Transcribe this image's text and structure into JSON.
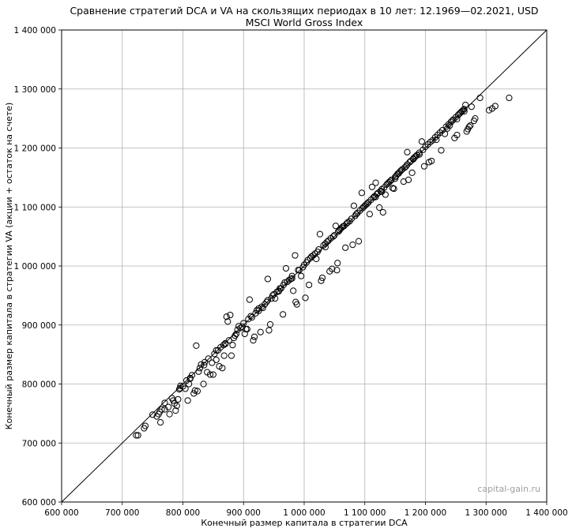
{
  "chart_data": {
    "type": "scatter",
    "title": "Сравнение стратегий DCA и VA на скользящих периодах в 10 лет: 12.1969—02.2021, USD",
    "subtitle": "MSCI World Gross Index",
    "xlabel": "Конечный размер капитала в стратегии DCA",
    "ylabel": "Конечный размер капитала в стратегии VA (акции + остаток на счете)",
    "xlim": [
      600000,
      1400000
    ],
    "ylim": [
      600000,
      1400000
    ],
    "xticks": [
      "600 000",
      "700 000",
      "800 000",
      "900 000",
      "1 000 000",
      "1 100 000",
      "1 200 000",
      "1 300 000",
      "1 400 000"
    ],
    "yticks": [
      "600 000",
      "700 000",
      "800 000",
      "900 000",
      "1 000 000",
      "1 100 000",
      "1 200 000",
      "1 300 000",
      "1 400 000"
    ],
    "grid": true,
    "reference_line": "y = x",
    "marker": "open-circle",
    "watermark": "capital-gain.ru",
    "points": [
      [
        723000,
        713000
      ],
      [
        726000,
        713000
      ],
      [
        736000,
        725000
      ],
      [
        738000,
        729000
      ],
      [
        757000,
        745000
      ],
      [
        760000,
        749000
      ],
      [
        762000,
        753000
      ],
      [
        765000,
        757000
      ],
      [
        763000,
        735000
      ],
      [
        770000,
        757000
      ],
      [
        776000,
        761000
      ],
      [
        778000,
        749000
      ],
      [
        782000,
        776000
      ],
      [
        784000,
        772000
      ],
      [
        786000,
        767000
      ],
      [
        788000,
        755000
      ],
      [
        790000,
        763000
      ],
      [
        792000,
        774000
      ],
      [
        794000,
        791000
      ],
      [
        796000,
        797000
      ],
      [
        800000,
        796000
      ],
      [
        804000,
        792000
      ],
      [
        806000,
        806000
      ],
      [
        808000,
        772000
      ],
      [
        810000,
        800000
      ],
      [
        812000,
        809000
      ],
      [
        815000,
        815000
      ],
      [
        818000,
        784000
      ],
      [
        820000,
        789000
      ],
      [
        822000,
        865000
      ],
      [
        824000,
        788000
      ],
      [
        826000,
        821000
      ],
      [
        828000,
        827000
      ],
      [
        830000,
        833000
      ],
      [
        834000,
        800000
      ],
      [
        836000,
        837000
      ],
      [
        840000,
        820000
      ],
      [
        842000,
        843000
      ],
      [
        845000,
        816000
      ],
      [
        848000,
        836000
      ],
      [
        850000,
        816000
      ],
      [
        852000,
        851000
      ],
      [
        855000,
        841000
      ],
      [
        858000,
        857000
      ],
      [
        860000,
        830000
      ],
      [
        862000,
        862000
      ],
      [
        865000,
        827000
      ],
      [
        867000,
        866000
      ],
      [
        868000,
        848000
      ],
      [
        870000,
        869000
      ],
      [
        872000,
        914000
      ],
      [
        874000,
        906000
      ],
      [
        876000,
        874000
      ],
      [
        878000,
        917000
      ],
      [
        880000,
        848000
      ],
      [
        882000,
        866000
      ],
      [
        884000,
        878000
      ],
      [
        886000,
        882000
      ],
      [
        888000,
        885000
      ],
      [
        890000,
        892000
      ],
      [
        892000,
        898000
      ],
      [
        895000,
        895000
      ],
      [
        898000,
        897000
      ],
      [
        900000,
        903000
      ],
      [
        902000,
        885000
      ],
      [
        904000,
        893000
      ],
      [
        906000,
        893000
      ],
      [
        908000,
        910000
      ],
      [
        910000,
        943000
      ],
      [
        912000,
        915000
      ],
      [
        914000,
        913000
      ],
      [
        916000,
        874000
      ],
      [
        918000,
        880000
      ],
      [
        920000,
        920000
      ],
      [
        922000,
        925000
      ],
      [
        925000,
        928000
      ],
      [
        928000,
        888000
      ],
      [
        930000,
        931000
      ],
      [
        932000,
        929000
      ],
      [
        935000,
        935000
      ],
      [
        938000,
        939000
      ],
      [
        940000,
        978000
      ],
      [
        942000,
        891000
      ],
      [
        944000,
        901000
      ],
      [
        946000,
        945000
      ],
      [
        948000,
        950000
      ],
      [
        950000,
        952000
      ],
      [
        952000,
        945000
      ],
      [
        955000,
        956000
      ],
      [
        958000,
        958000
      ],
      [
        960000,
        962000
      ],
      [
        962000,
        962000
      ],
      [
        965000,
        918000
      ],
      [
        966000,
        968000
      ],
      [
        968000,
        972000
      ],
      [
        970000,
        996000
      ],
      [
        972000,
        973000
      ],
      [
        975000,
        976000
      ],
      [
        978000,
        978000
      ],
      [
        980000,
        983000
      ],
      [
        982000,
        958000
      ],
      [
        985000,
        1018000
      ],
      [
        986000,
        939000
      ],
      [
        988000,
        935000
      ],
      [
        990000,
        993000
      ],
      [
        992000,
        993000
      ],
      [
        995000,
        983000
      ],
      [
        998000,
        998000
      ],
      [
        1000000,
        1002000
      ],
      [
        1002000,
        946000
      ],
      [
        1004000,
        1006000
      ],
      [
        1006000,
        1010000
      ],
      [
        1008000,
        968000
      ],
      [
        1010000,
        1013000
      ],
      [
        1012000,
        1016000
      ],
      [
        1015000,
        1018000
      ],
      [
        1018000,
        1021000
      ],
      [
        1020000,
        1012000
      ],
      [
        1022000,
        1024000
      ],
      [
        1024000,
        1028000
      ],
      [
        1026000,
        1054000
      ],
      [
        1028000,
        975000
      ],
      [
        1030000,
        980000
      ],
      [
        1032000,
        1035000
      ],
      [
        1035000,
        1038000
      ],
      [
        1038000,
        1041000
      ],
      [
        1040000,
        1043000
      ],
      [
        1042000,
        991000
      ],
      [
        1044000,
        1047000
      ],
      [
        1046000,
        995000
      ],
      [
        1048000,
        1050000
      ],
      [
        1050000,
        1052000
      ],
      [
        1052000,
        1068000
      ],
      [
        1054000,
        993000
      ],
      [
        1055000,
        1005000
      ],
      [
        1056000,
        1058000
      ],
      [
        1058000,
        1060000
      ],
      [
        1060000,
        1063000
      ],
      [
        1062000,
        1065000
      ],
      [
        1064000,
        1067000
      ],
      [
        1066000,
        1068000
      ],
      [
        1068000,
        1031000
      ],
      [
        1070000,
        1072000
      ],
      [
        1072000,
        1074000
      ],
      [
        1075000,
        1076000
      ],
      [
        1078000,
        1080000
      ],
      [
        1080000,
        1036000
      ],
      [
        1082000,
        1102000
      ],
      [
        1084000,
        1085000
      ],
      [
        1086000,
        1088000
      ],
      [
        1088000,
        1090000
      ],
      [
        1090000,
        1042000
      ],
      [
        1092000,
        1094000
      ],
      [
        1095000,
        1124000
      ],
      [
        1096000,
        1098000
      ],
      [
        1098000,
        1100000
      ],
      [
        1100000,
        1102000
      ],
      [
        1102000,
        1104000
      ],
      [
        1104000,
        1106000
      ],
      [
        1106000,
        1108000
      ],
      [
        1108000,
        1088000
      ],
      [
        1110000,
        1112000
      ],
      [
        1112000,
        1134000
      ],
      [
        1114000,
        1116000
      ],
      [
        1116000,
        1118000
      ],
      [
        1118000,
        1141000
      ],
      [
        1120000,
        1122000
      ],
      [
        1122000,
        1124000
      ],
      [
        1124000,
        1099000
      ],
      [
        1126000,
        1127000
      ],
      [
        1128000,
        1130000
      ],
      [
        1130000,
        1091000
      ],
      [
        1132000,
        1133000
      ],
      [
        1134000,
        1121000
      ],
      [
        1136000,
        1138000
      ],
      [
        1138000,
        1140000
      ],
      [
        1140000,
        1142000
      ],
      [
        1142000,
        1144000
      ],
      [
        1144000,
        1146000
      ],
      [
        1146000,
        1132000
      ],
      [
        1148000,
        1131000
      ],
      [
        1150000,
        1151000
      ],
      [
        1152000,
        1153000
      ],
      [
        1154000,
        1156000
      ],
      [
        1156000,
        1157000
      ],
      [
        1158000,
        1160000
      ],
      [
        1160000,
        1162000
      ],
      [
        1162000,
        1164000
      ],
      [
        1164000,
        1143000
      ],
      [
        1166000,
        1167000
      ],
      [
        1168000,
        1169000
      ],
      [
        1170000,
        1193000
      ],
      [
        1172000,
        1146000
      ],
      [
        1174000,
        1176000
      ],
      [
        1176000,
        1178000
      ],
      [
        1178000,
        1158000
      ],
      [
        1180000,
        1182000
      ],
      [
        1182000,
        1184000
      ],
      [
        1184000,
        1186000
      ],
      [
        1186000,
        1188000
      ],
      [
        1190000,
        1192000
      ],
      [
        1194000,
        1211000
      ],
      [
        1196000,
        1197000
      ],
      [
        1198000,
        1169000
      ],
      [
        1200000,
        1202000
      ],
      [
        1204000,
        1206000
      ],
      [
        1206000,
        1176000
      ],
      [
        1208000,
        1210000
      ],
      [
        1210000,
        1178000
      ],
      [
        1212000,
        1213000
      ],
      [
        1216000,
        1218000
      ],
      [
        1220000,
        1222000
      ],
      [
        1224000,
        1226000
      ],
      [
        1226000,
        1196000
      ],
      [
        1228000,
        1230000
      ],
      [
        1232000,
        1224000
      ],
      [
        1234000,
        1236000
      ],
      [
        1238000,
        1240000
      ],
      [
        1240000,
        1238000
      ],
      [
        1242000,
        1244000
      ],
      [
        1244000,
        1246000
      ],
      [
        1246000,
        1248000
      ],
      [
        1248000,
        1217000
      ],
      [
        1250000,
        1252000
      ],
      [
        1252000,
        1222000
      ],
      [
        1254000,
        1256000
      ],
      [
        1256000,
        1258000
      ],
      [
        1258000,
        1260000
      ],
      [
        1260000,
        1262000
      ],
      [
        1262000,
        1264000
      ],
      [
        1264000,
        1266000
      ],
      [
        1266000,
        1273000
      ],
      [
        1268000,
        1228000
      ],
      [
        1270000,
        1232000
      ],
      [
        1272000,
        1236000
      ],
      [
        1274000,
        1238000
      ],
      [
        1276000,
        1270000
      ],
      [
        1280000,
        1246000
      ],
      [
        1282000,
        1250000
      ],
      [
        1290000,
        1285000
      ],
      [
        1305000,
        1264000
      ],
      [
        1310000,
        1267000
      ],
      [
        1315000,
        1271000
      ],
      [
        1338000,
        1285000
      ],
      [
        1035000,
        1032000
      ],
      [
        1058000,
        1061000
      ],
      [
        1118000,
        1117000
      ],
      [
        1128000,
        1126000
      ],
      [
        1150000,
        1148000
      ],
      [
        1170000,
        1172000
      ],
      [
        1180000,
        1181000
      ],
      [
        1190000,
        1189000
      ],
      [
        1218000,
        1214000
      ],
      [
        1236000,
        1233000
      ],
      [
        1252000,
        1249000
      ],
      [
        1264000,
        1262000
      ],
      [
        980000,
        979000
      ],
      [
        958000,
        957000
      ],
      [
        940000,
        942000
      ],
      [
        925000,
        924000
      ],
      [
        870000,
        868000
      ],
      [
        855000,
        857000
      ],
      [
        835000,
        832000
      ],
      [
        812000,
        810000
      ],
      [
        795000,
        793000
      ],
      [
        770000,
        768000
      ],
      [
        750000,
        748000
      ]
    ]
  }
}
